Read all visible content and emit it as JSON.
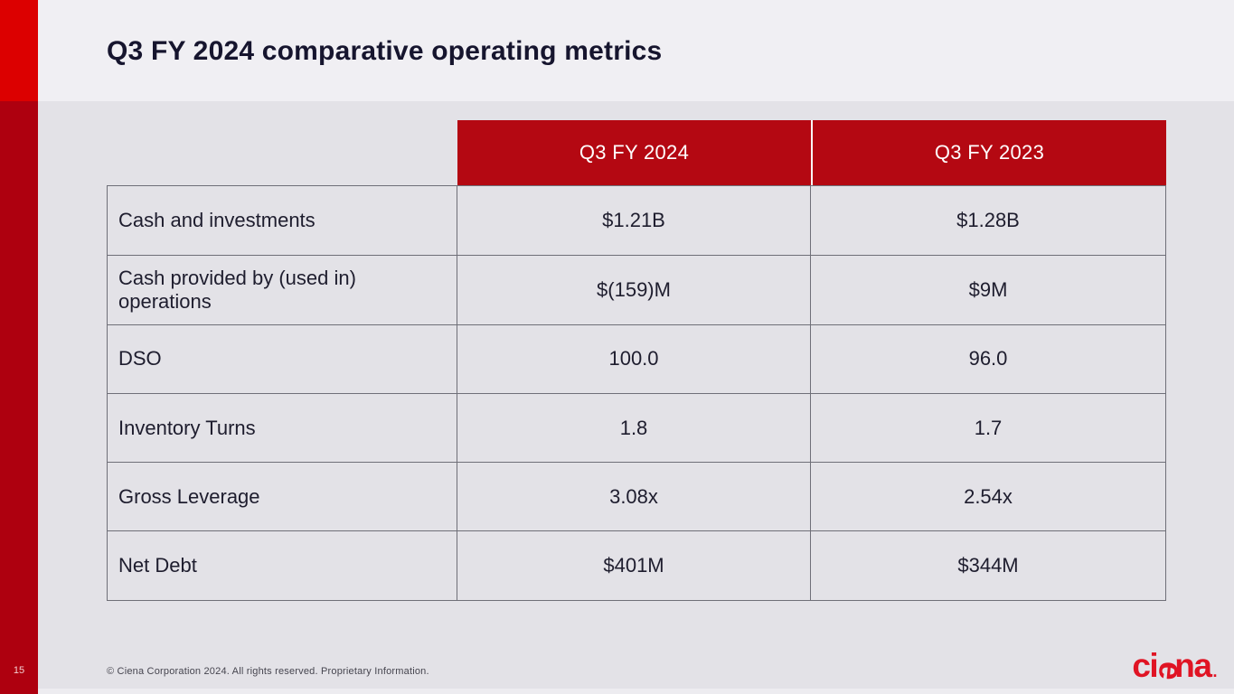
{
  "slide": {
    "title": "Q3 FY 2024 comparative operating metrics",
    "page_number": "15",
    "footer": "© Ciena Corporation 2024. All rights reserved. Proprietary Information."
  },
  "logo": {
    "part1": "ci",
    "part2": "e",
    "part3": "na",
    "dot": "."
  },
  "colors": {
    "accent_bar_top": "#dc0000",
    "accent_bar_bottom": "#ae000f",
    "header_red": "#b40812",
    "title_band_bg": "#f0eff3",
    "main_bg": "#e3e2e7",
    "logo_red": "#e01424",
    "text_dark": "#1e1d2e"
  },
  "table": {
    "column_headers": [
      "Q3 FY 2024",
      "Q3 FY 2023"
    ],
    "rows": [
      {
        "label": "Cash and investments",
        "q3_fy_2024": "$1.21B",
        "q3_fy_2023": "$1.28B"
      },
      {
        "label": "Cash provided by (used in)\noperations",
        "q3_fy_2024": "$(159)M",
        "q3_fy_2023": "$9M"
      },
      {
        "label": "DSO",
        "q3_fy_2024": "100.0",
        "q3_fy_2023": "96.0"
      },
      {
        "label": "Inventory Turns",
        "q3_fy_2024": "1.8",
        "q3_fy_2023": "1.7"
      },
      {
        "label": "Gross Leverage",
        "q3_fy_2024": "3.08x",
        "q3_fy_2023": "2.54x"
      },
      {
        "label": "Net Debt",
        "q3_fy_2024": "$401M",
        "q3_fy_2023": "$344M"
      }
    ]
  }
}
